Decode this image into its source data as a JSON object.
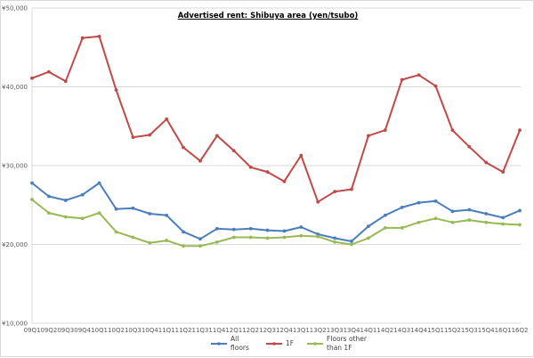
{
  "chart_data": {
    "type": "line",
    "title": "Advertised rent: Shibuya area (yen/tsubo)",
    "xlabel": "",
    "ylabel": "",
    "ylim": [
      10000,
      50000
    ],
    "yticks": [
      "¥10,000",
      "¥20,000",
      "¥30,000",
      "¥40,000",
      "¥50,000"
    ],
    "ytick_values": [
      10000,
      20000,
      30000,
      40000,
      50000
    ],
    "grid": true,
    "legend_position": "bottom",
    "categories": [
      "09Q1",
      "09Q2",
      "09Q3",
      "09Q4",
      "10Q1",
      "10Q2",
      "10Q3",
      "10Q4",
      "11Q1",
      "11Q2",
      "11Q3",
      "11Q4",
      "12Q1",
      "12Q2",
      "12Q3",
      "12Q4",
      "13Q1",
      "13Q2",
      "13Q3",
      "13Q4",
      "14Q1",
      "14Q2",
      "14Q3",
      "14Q4",
      "15Q1",
      "15Q2",
      "15Q3",
      "15Q4",
      "16Q1",
      "16Q2"
    ],
    "series": [
      {
        "name": "All floors",
        "color": "#4a7ebb",
        "values": [
          27800,
          26100,
          25600,
          26300,
          27800,
          24500,
          24600,
          23900,
          23700,
          21600,
          20700,
          22000,
          21900,
          22000,
          21800,
          21700,
          22200,
          21300,
          20800,
          20400,
          22300,
          23700,
          24700,
          25300,
          25500,
          24200,
          24400,
          23900,
          23400,
          24300
        ]
      },
      {
        "name": "1F",
        "color": "#be4b48",
        "values": [
          41100,
          41900,
          40700,
          46200,
          46400,
          39600,
          33600,
          33900,
          35900,
          32300,
          30600,
          33800,
          31900,
          29800,
          29200,
          28000,
          31300,
          25400,
          26700,
          27000,
          33800,
          34500,
          40900,
          41500,
          40100,
          34500,
          32400,
          30400,
          29200,
          34500
        ]
      },
      {
        "name": "Floors other than 1F",
        "color": "#98b954",
        "values": [
          25700,
          24000,
          23500,
          23300,
          24000,
          21600,
          20900,
          20200,
          20500,
          19800,
          19800,
          20300,
          20900,
          20900,
          20800,
          20900,
          21100,
          21000,
          20300,
          20000,
          20800,
          22100,
          22100,
          22800,
          23300,
          22800,
          23100,
          22800,
          22600,
          22500
        ]
      }
    ]
  },
  "legend": {
    "items": [
      {
        "label_line1": "All",
        "label_line2": "floors",
        "color": "#4a7ebb"
      },
      {
        "label_line1": "1F",
        "label_line2": "",
        "color": "#be4b48"
      },
      {
        "label_line1": "Floors other",
        "label_line2": "than 1F",
        "color": "#98b954"
      }
    ]
  },
  "colors": {
    "gridline": "#d9d9d9",
    "axis_text": "#595959"
  }
}
